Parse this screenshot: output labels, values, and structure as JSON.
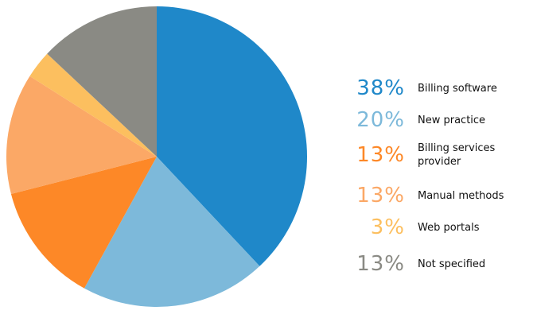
{
  "chart_data": {
    "type": "pie",
    "title": "",
    "slices": [
      {
        "label": "Billing software",
        "value": 38,
        "display": "38%",
        "color": "#1f88c9"
      },
      {
        "label": "New practice",
        "value": 20,
        "display": "20%",
        "color": "#7db9da"
      },
      {
        "label": "Billing services provider",
        "value": 13,
        "display": "13%",
        "color": "#fd8827"
      },
      {
        "label": "Manual methods",
        "value": 13,
        "display": "13%",
        "color": "#fba866"
      },
      {
        "label": "Web portals",
        "value": 3,
        "display": "3%",
        "color": "#fcbf5f"
      },
      {
        "label": "Not specified",
        "value": 13,
        "display": "13%",
        "color": "#8a8a84"
      }
    ],
    "legend_position": "right",
    "start_angle": "12 o'clock",
    "direction": "clockwise"
  }
}
